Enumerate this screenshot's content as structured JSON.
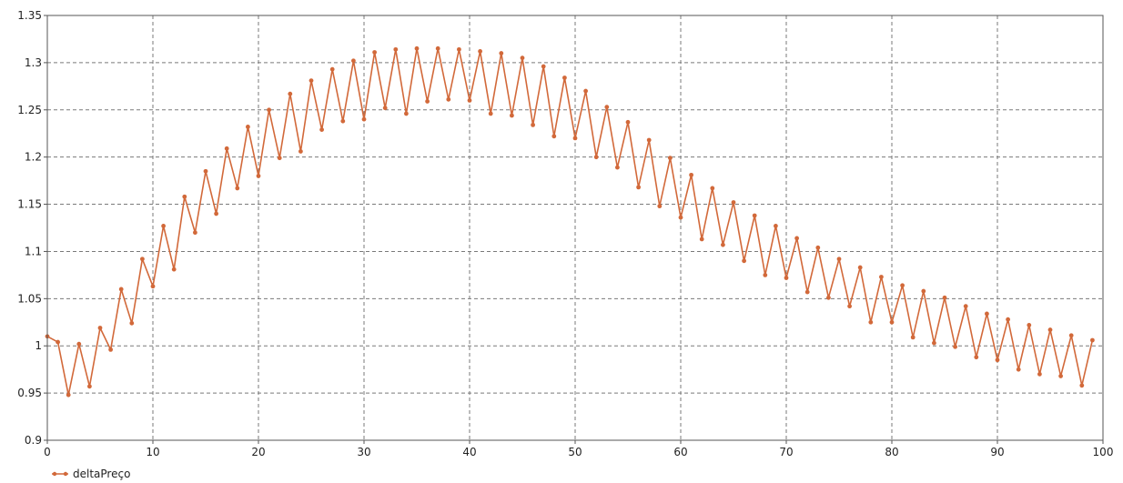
{
  "chart_data": {
    "type": "line",
    "xlim": [
      0,
      100
    ],
    "ylim": [
      0.9,
      1.35
    ],
    "x_ticks": [
      0,
      10,
      20,
      30,
      40,
      50,
      60,
      70,
      80,
      90,
      100
    ],
    "y_ticks": [
      "0.9",
      "0.95",
      "1",
      "1.05",
      "1.1",
      "1.15",
      "1.2",
      "1.25",
      "1.3",
      "1.35"
    ],
    "grid": true,
    "legend_position": "bottom-left",
    "series": [
      {
        "name": "deltaPreço",
        "color": "#d2693a",
        "x": [
          0,
          1,
          2,
          3,
          4,
          5,
          6,
          7,
          8,
          9,
          10,
          11,
          12,
          13,
          14,
          15,
          16,
          17,
          18,
          19,
          20,
          21,
          22,
          23,
          24,
          25,
          26,
          27,
          28,
          29,
          30,
          31,
          32,
          33,
          34,
          35,
          36,
          37,
          38,
          39,
          40,
          41,
          42,
          43,
          44,
          45,
          46,
          47,
          48,
          49,
          50,
          51,
          52,
          53,
          54,
          55,
          56,
          57,
          58,
          59,
          60,
          61,
          62,
          63,
          64,
          65,
          66,
          67,
          68,
          69,
          70,
          71,
          72,
          73,
          74,
          75,
          76,
          77,
          78,
          79,
          80,
          81,
          82,
          83,
          84,
          85,
          86,
          87,
          88,
          89,
          90,
          91,
          92,
          93,
          94,
          95,
          96,
          97,
          98,
          99
        ],
        "y": [
          1.01,
          1.004,
          0.948,
          1.002,
          0.957,
          1.019,
          0.996,
          1.06,
          1.024,
          1.092,
          1.063,
          1.127,
          1.081,
          1.158,
          1.12,
          1.185,
          1.14,
          1.209,
          1.167,
          1.232,
          1.18,
          1.25,
          1.199,
          1.267,
          1.206,
          1.281,
          1.229,
          1.293,
          1.238,
          1.302,
          1.24,
          1.311,
          1.252,
          1.314,
          1.246,
          1.315,
          1.259,
          1.315,
          1.261,
          1.314,
          1.26,
          1.312,
          1.246,
          1.31,
          1.244,
          1.305,
          1.234,
          1.296,
          1.222,
          1.284,
          1.22,
          1.27,
          1.2,
          1.253,
          1.189,
          1.237,
          1.168,
          1.218,
          1.148,
          1.199,
          1.136,
          1.181,
          1.113,
          1.167,
          1.107,
          1.152,
          1.09,
          1.138,
          1.075,
          1.127,
          1.072,
          1.114,
          1.057,
          1.104,
          1.051,
          1.092,
          1.042,
          1.083,
          1.025,
          1.073,
          1.025,
          1.064,
          1.009,
          1.058,
          1.003,
          1.051,
          0.999,
          1.042,
          0.988,
          1.034,
          0.985,
          1.028,
          0.975,
          1.022,
          0.97,
          1.017,
          0.968,
          1.011,
          0.958,
          1.006
        ]
      }
    ]
  }
}
